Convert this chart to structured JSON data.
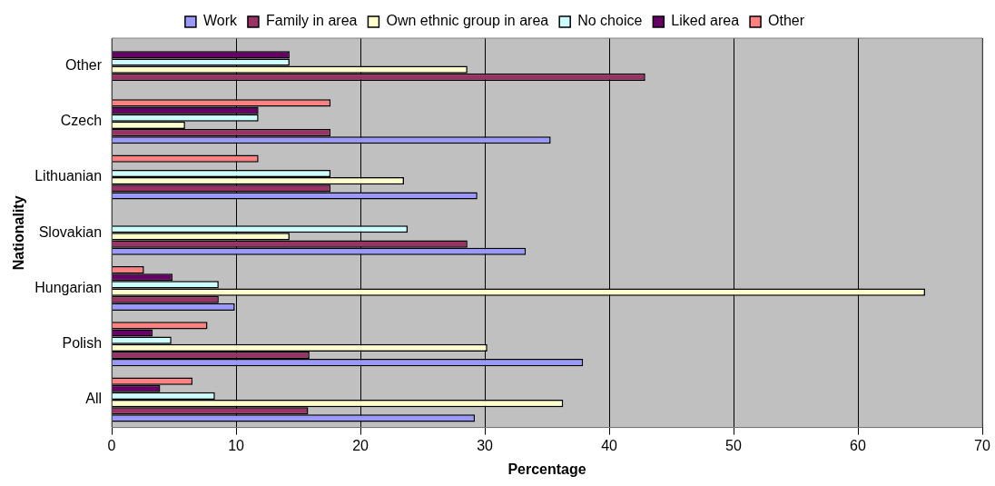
{
  "chart_data": {
    "type": "bar",
    "orientation": "horizontal",
    "xlabel": "Percentage",
    "ylabel": "Nationality",
    "categories": [
      "Other",
      "Czech",
      "Lithuanian",
      "Slovakian",
      "Hungarian",
      "Polish",
      "All"
    ],
    "series": [
      {
        "name": "Work",
        "color": "#9999ff",
        "values": [
          0,
          35.3,
          29.4,
          33.3,
          9.9,
          37.9,
          29.2
        ]
      },
      {
        "name": "Family in area",
        "color": "#993366",
        "values": [
          42.9,
          17.6,
          17.6,
          28.6,
          8.6,
          15.9,
          15.8
        ]
      },
      {
        "name": "Own ethnic group in area",
        "color": "#ffffcc",
        "values": [
          28.6,
          5.9,
          23.5,
          14.3,
          65.4,
          30.2,
          36.3
        ]
      },
      {
        "name": "No choice",
        "color": "#ccffff",
        "values": [
          14.3,
          11.8,
          17.6,
          23.8,
          8.6,
          4.8,
          8.3
        ]
      },
      {
        "name": "Liked area",
        "color": "#660066",
        "values": [
          14.3,
          11.8,
          0,
          0,
          4.9,
          3.3,
          3.9
        ]
      },
      {
        "name": "Other",
        "color": "#ff8080",
        "values": [
          0,
          17.6,
          11.8,
          0,
          2.6,
          7.7,
          6.5
        ]
      }
    ],
    "xlim": [
      0,
      70
    ],
    "xticks": [
      0,
      10,
      20,
      30,
      40,
      50,
      60,
      70
    ],
    "grid": "x",
    "legend": "top"
  }
}
